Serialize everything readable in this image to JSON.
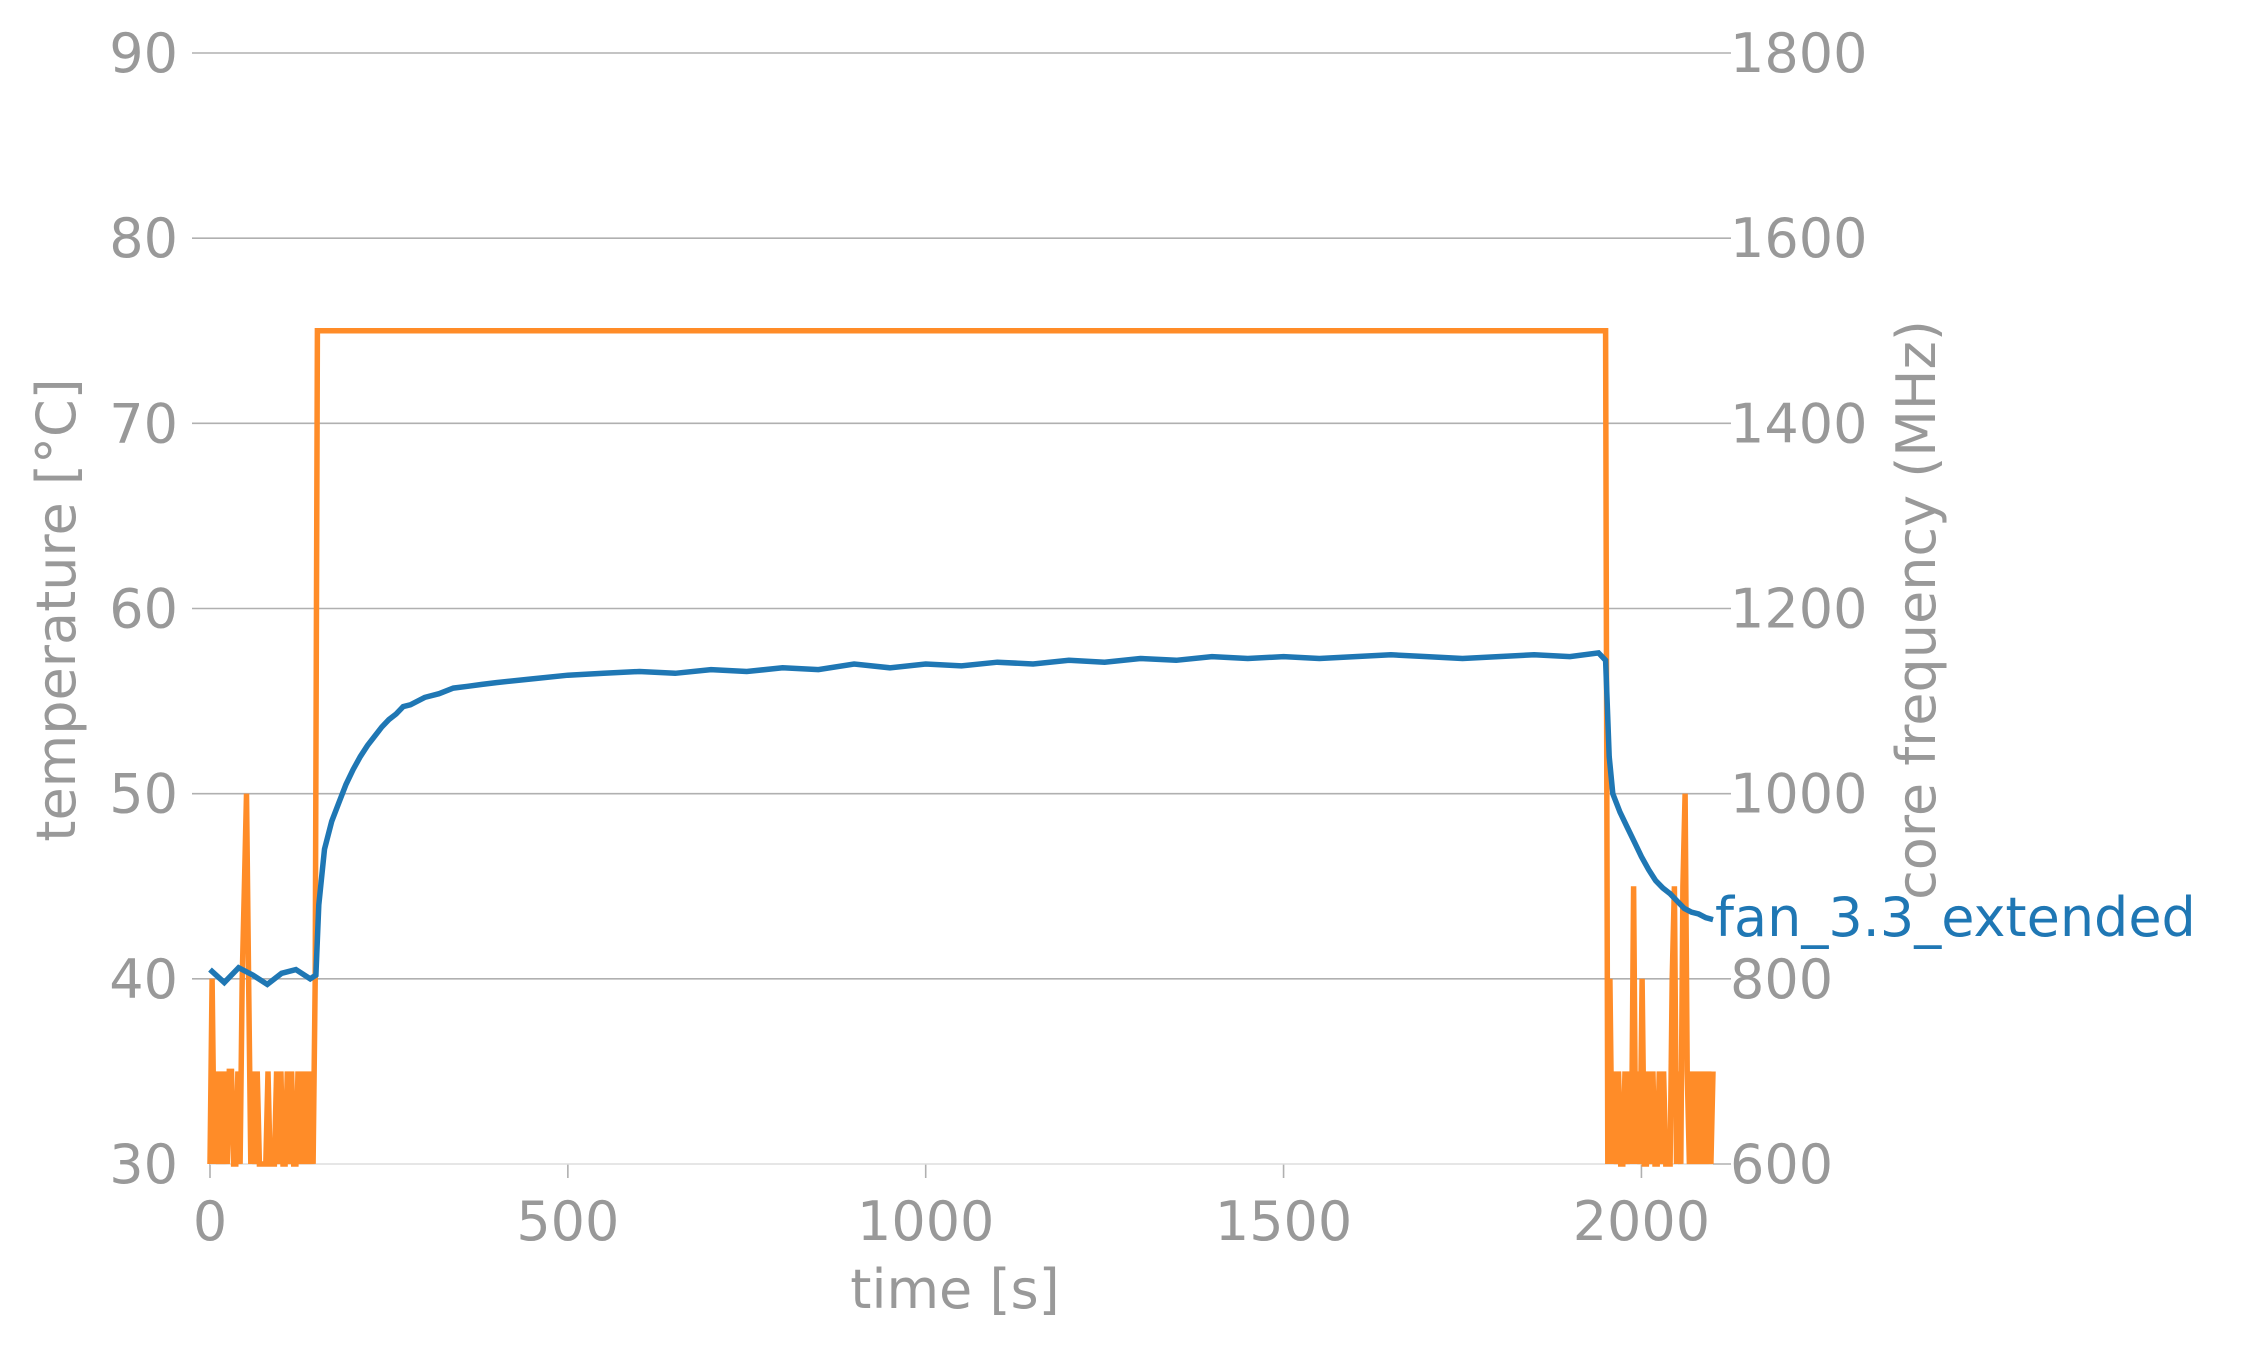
{
  "chart_data": {
    "type": "line",
    "title": "",
    "xlabel": "time [s]",
    "ylabel_left": "temperature [°C]",
    "ylabel_right": "core frequency (MHz)",
    "xlim": [
      0,
      2100
    ],
    "ylim_left": [
      30,
      90
    ],
    "ylim_right": [
      600,
      1800
    ],
    "x_ticks": [
      0,
      500,
      1000,
      1500,
      2000
    ],
    "y_ticks_left": [
      30,
      40,
      50,
      60,
      70,
      80,
      90
    ],
    "y_ticks_right": [
      600,
      800,
      1000,
      1200,
      1400,
      1600,
      1800
    ],
    "grid": "horizontal",
    "colors": {
      "temperature": "#1f77b4",
      "frequency": "#ff8c28",
      "text": "#999999"
    },
    "series": [
      {
        "name": "fan_3.3_extended",
        "axis": "left",
        "x": [
          0,
          20,
          40,
          60,
          80,
          100,
          120,
          140,
          148,
          152,
          160,
          170,
          180,
          190,
          200,
          210,
          220,
          230,
          240,
          250,
          260,
          270,
          280,
          300,
          320,
          340,
          360,
          380,
          400,
          450,
          500,
          550,
          600,
          650,
          700,
          750,
          800,
          850,
          900,
          950,
          1000,
          1050,
          1100,
          1150,
          1200,
          1250,
          1300,
          1350,
          1400,
          1450,
          1500,
          1550,
          1600,
          1650,
          1700,
          1750,
          1800,
          1850,
          1900,
          1940,
          1950,
          1955,
          1960,
          1970,
          1980,
          1990,
          2000,
          2010,
          2020,
          2030,
          2040,
          2050,
          2060,
          2070,
          2080,
          2090,
          2100
        ],
        "values": [
          40.5,
          39.8,
          40.6,
          40.2,
          39.7,
          40.3,
          40.5,
          40.0,
          40.2,
          44.0,
          47.0,
          48.5,
          49.5,
          50.5,
          51.3,
          52.0,
          52.6,
          53.1,
          53.6,
          54.0,
          54.3,
          54.7,
          54.8,
          55.2,
          55.4,
          55.7,
          55.8,
          55.9,
          56.0,
          56.2,
          56.4,
          56.5,
          56.6,
          56.5,
          56.7,
          56.6,
          56.8,
          56.7,
          57.0,
          56.8,
          57.0,
          56.9,
          57.1,
          57.0,
          57.2,
          57.1,
          57.3,
          57.2,
          57.4,
          57.3,
          57.4,
          57.3,
          57.4,
          57.5,
          57.4,
          57.3,
          57.4,
          57.5,
          57.4,
          57.6,
          57.2,
          52.0,
          50.0,
          49.0,
          48.2,
          47.4,
          46.6,
          45.9,
          45.3,
          44.9,
          44.6,
          44.2,
          43.8,
          43.6,
          43.5,
          43.3,
          43.2
        ]
      },
      {
        "name": "",
        "axis": "right",
        "x": [
          0,
          3,
          6,
          9,
          12,
          15,
          18,
          21,
          24,
          27,
          30,
          33,
          36,
          39,
          42,
          45,
          48,
          51,
          54,
          57,
          60,
          63,
          66,
          69,
          72,
          75,
          78,
          81,
          84,
          87,
          90,
          93,
          96,
          99,
          102,
          105,
          108,
          111,
          114,
          117,
          120,
          123,
          126,
          129,
          132,
          135,
          138,
          141,
          144,
          147,
          150,
          1950,
          1953,
          1956,
          1959,
          1962,
          1965,
          1968,
          1971,
          1974,
          1977,
          1980,
          1983,
          1986,
          1989,
          1992,
          1995,
          1998,
          2001,
          2004,
          2007,
          2010,
          2013,
          2016,
          2019,
          2022,
          2025,
          2028,
          2031,
          2034,
          2037,
          2040,
          2043,
          2046,
          2049,
          2052,
          2055,
          2058,
          2061,
          2064,
          2067,
          2070,
          2073,
          2076,
          2079,
          2082,
          2085,
          2088,
          2091,
          2094,
          2097,
          2100
        ],
        "values": [
          600,
          800,
          600,
          700,
          600,
          700,
          600,
          700,
          600,
          700,
          700,
          600,
          600,
          700,
          600,
          800,
          900,
          1000,
          800,
          600,
          700,
          600,
          700,
          600,
          600,
          600,
          600,
          700,
          600,
          600,
          600,
          700,
          600,
          700,
          600,
          600,
          700,
          600,
          700,
          600,
          600,
          700,
          600,
          700,
          600,
          700,
          600,
          700,
          600,
          800,
          1500,
          1500,
          600,
          800,
          600,
          700,
          600,
          700,
          600,
          600,
          700,
          600,
          700,
          600,
          900,
          600,
          700,
          600,
          800,
          600,
          600,
          700,
          600,
          700,
          600,
          600,
          700,
          600,
          700,
          600,
          600,
          600,
          800,
          900,
          600,
          700,
          600,
          900,
          1000,
          700,
          600,
          700,
          600,
          700,
          600,
          700,
          600,
          700,
          600,
          700,
          600,
          700
        ]
      }
    ]
  }
}
